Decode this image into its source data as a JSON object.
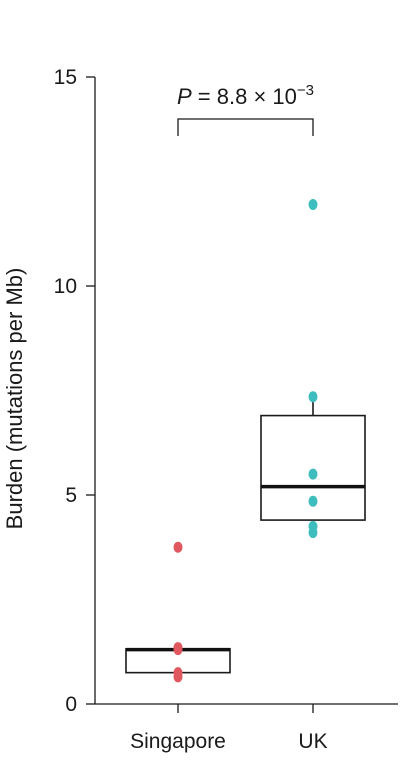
{
  "chart_data": {
    "type": "box",
    "ylabel": "Burden (mutations per Mb)",
    "xlabel": "",
    "ylim": [
      0,
      15
    ],
    "yticks": [
      0,
      5,
      10,
      15
    ],
    "categories": [
      "Singapore",
      "UK"
    ],
    "series": [
      {
        "category": "Singapore",
        "color": "#e0575f",
        "q1": 0.75,
        "median": 1.3,
        "q3": 1.32,
        "whisker_low": 0.75,
        "whisker_high": 1.32,
        "points": [
          3.75,
          1.35,
          1.3,
          0.75,
          0.65
        ]
      },
      {
        "category": "UK",
        "color": "#3dbdbd",
        "q1": 4.4,
        "median": 5.2,
        "q3": 6.9,
        "whisker_low": 4.4,
        "whisker_high": 7.35,
        "points": [
          11.95,
          7.35,
          5.5,
          4.85,
          4.25,
          4.1
        ]
      }
    ],
    "annotation": {
      "p_prefix": "P",
      "p_text": " = 8.8 × 10",
      "p_exponent": "−3",
      "groups": [
        "Singapore",
        "UK"
      ]
    }
  }
}
